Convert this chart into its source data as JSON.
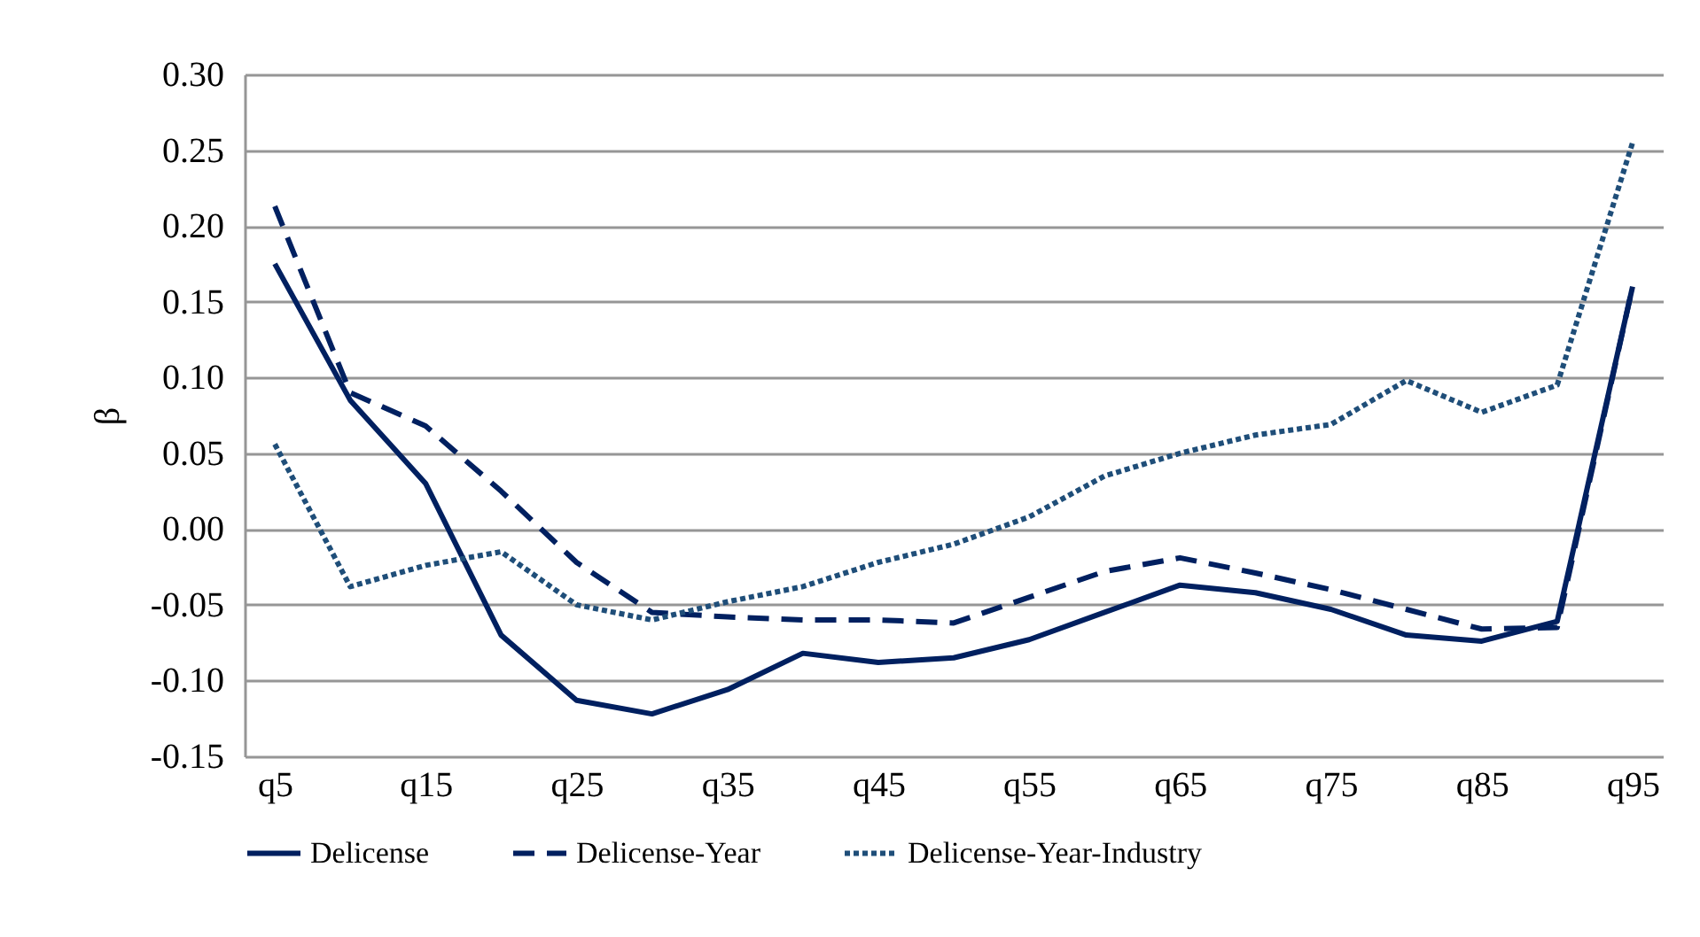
{
  "chart_data": {
    "type": "line",
    "ylabel": "β",
    "categories": [
      "q5",
      null,
      "q15",
      null,
      "q25",
      null,
      "q35",
      null,
      "q45",
      null,
      "q55",
      null,
      "q65",
      null,
      "q75",
      null,
      "q85",
      null,
      "q95"
    ],
    "series": [
      {
        "name": "Delicense",
        "color": "#002060",
        "line_style": "solid",
        "values": [
          0.175,
          0.085,
          0.03,
          -0.07,
          -0.113,
          -0.122,
          -0.106,
          -0.082,
          -0.088,
          -0.085,
          -0.073,
          -0.055,
          -0.037,
          -0.042,
          -0.053,
          -0.07,
          -0.074,
          -0.061,
          0.16
        ]
      },
      {
        "name": "Delicense-Year",
        "color": "#002060",
        "line_style": "dashed",
        "values": [
          0.213,
          0.09,
          0.068,
          0.025,
          -0.022,
          -0.055,
          -0.058,
          -0.06,
          -0.06,
          -0.062,
          -0.045,
          -0.028,
          -0.019,
          -0.029,
          -0.04,
          -0.053,
          -0.066,
          -0.065,
          0.16
        ]
      },
      {
        "name": "Delicense-Year-Industry",
        "color": "#1f4e79",
        "line_style": "dotted",
        "values": [
          0.056,
          -0.038,
          -0.024,
          -0.015,
          -0.05,
          -0.06,
          -0.048,
          -0.038,
          -0.022,
          -0.01,
          0.008,
          0.035,
          0.05,
          0.062,
          0.069,
          0.098,
          0.077,
          0.095,
          0.255
        ]
      }
    ],
    "ylim": [
      -0.15,
      0.3
    ],
    "yticks": [
      {
        "value": -0.15,
        "label": "-0.15"
      },
      {
        "value": -0.1,
        "label": "-0.10"
      },
      {
        "value": -0.05,
        "label": "-0.05"
      },
      {
        "value": 0,
        "label": "0.00"
      },
      {
        "value": 0.05,
        "label": "0.05"
      },
      {
        "value": 0.1,
        "label": "0.10"
      },
      {
        "value": 0.15,
        "label": "0.15"
      },
      {
        "value": 0.2,
        "label": "0.20"
      },
      {
        "value": 0.25,
        "label": "0.25"
      },
      {
        "value": 0.3,
        "label": "0.30"
      }
    ],
    "grid": "y",
    "legend": "bottom",
    "marker": "none"
  }
}
